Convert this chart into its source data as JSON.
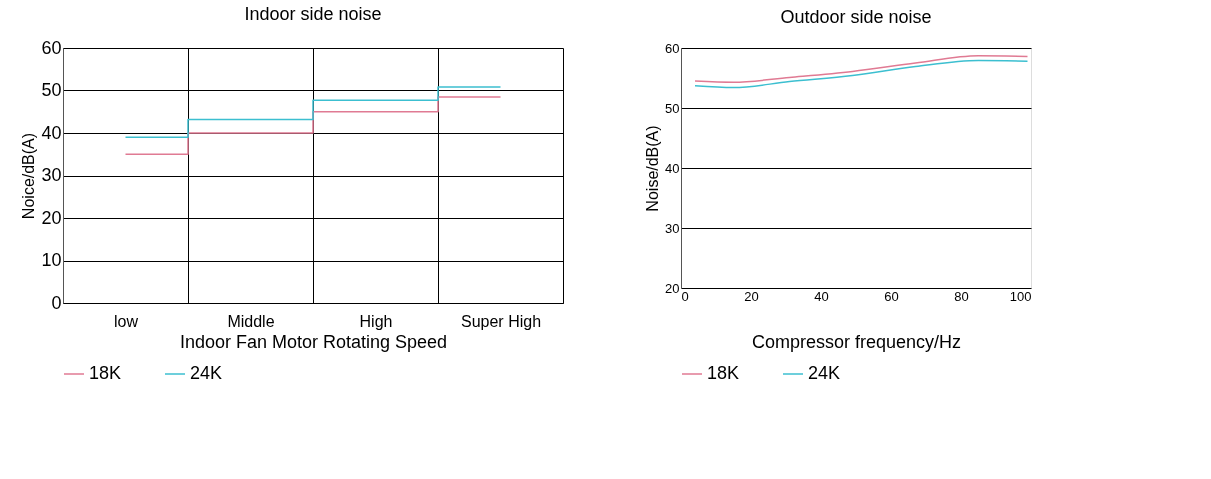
{
  "chart_data": [
    {
      "type": "step",
      "title": "Indoor side noise",
      "xlabel": "Indoor Fan Motor Rotating Speed",
      "ylabel": "Noice/dB(A)",
      "categories": [
        "low",
        "Middle",
        "High",
        "Super   High"
      ],
      "ylim": [
        0,
        60
      ],
      "yticks": [
        0,
        10,
        20,
        30,
        40,
        50,
        60
      ],
      "grid": true,
      "legend": "bottom",
      "series": [
        {
          "name": "18K",
          "color": "#e07a93",
          "values": [
            35,
            40,
            45,
            48.5
          ]
        },
        {
          "name": "24K",
          "color": "#3cbfd0",
          "values": [
            39,
            43.2,
            47.7,
            50.8
          ]
        }
      ]
    },
    {
      "type": "line",
      "title": "Outdoor side noise",
      "xlabel": "Compressor frequency/Hz",
      "ylabel": "Noise/dB(A)",
      "xlim": [
        0,
        100
      ],
      "xticks": [
        0,
        20,
        40,
        60,
        80,
        100
      ],
      "ylim": [
        20,
        60
      ],
      "yticks": [
        20,
        30,
        40,
        50,
        60
      ],
      "grid": "y",
      "legend": "bottom",
      "marker": "none",
      "series": [
        {
          "name": "18K",
          "color": "#e07a93",
          "x": [
            4,
            15,
            31,
            49,
            67,
            85,
            99
          ],
          "values": [
            54.5,
            54.3,
            55.1,
            56.1,
            57.5,
            58.7,
            58.6
          ]
        },
        {
          "name": "24K",
          "color": "#3cbfd0",
          "x": [
            4,
            15,
            31,
            49,
            67,
            85,
            99
          ],
          "values": [
            53.7,
            53.4,
            54.4,
            55.4,
            56.9,
            57.9,
            57.8
          ]
        }
      ]
    }
  ]
}
